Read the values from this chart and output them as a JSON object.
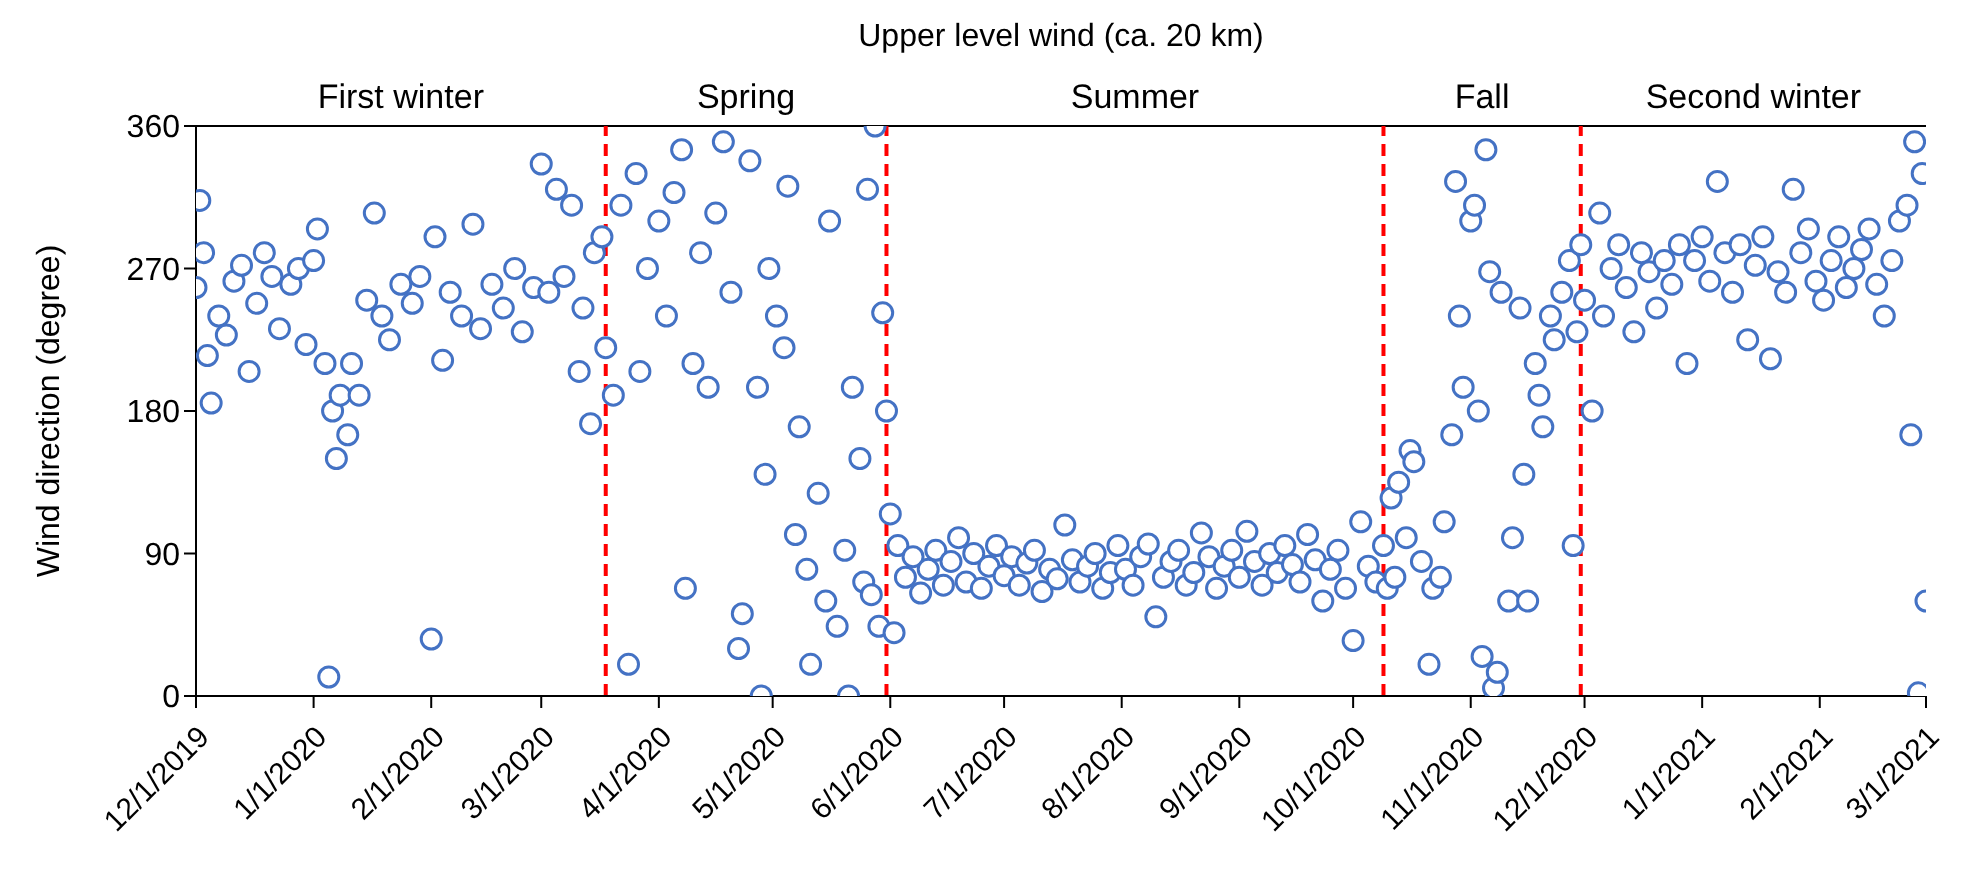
{
  "chart_data": {
    "type": "scatter",
    "title": "Upper level wind (ca. 20 km)",
    "ylabel": "Wind direction (degree)",
    "annotations": [
      "First winter",
      "Spring",
      "Summer",
      "Fall",
      "Second winter"
    ],
    "xlim": [
      "2019-12-01",
      "2021-03-01"
    ],
    "xticks": [
      {
        "value": "2019-12-01",
        "label": "12/1/2019"
      },
      {
        "value": "2020-01-01",
        "label": "1/1/2020"
      },
      {
        "value": "2020-02-01",
        "label": "2/1/2020"
      },
      {
        "value": "2020-03-01",
        "label": "3/1/2020"
      },
      {
        "value": "2020-04-01",
        "label": "4/1/2020"
      },
      {
        "value": "2020-05-01",
        "label": "5/1/2020"
      },
      {
        "value": "2020-06-01",
        "label": "6/1/2020"
      },
      {
        "value": "2020-07-01",
        "label": "7/1/2020"
      },
      {
        "value": "2020-08-01",
        "label": "8/1/2020"
      },
      {
        "value": "2020-09-01",
        "label": "9/1/2020"
      },
      {
        "value": "2020-10-01",
        "label": "10/1/2020"
      },
      {
        "value": "2020-11-01",
        "label": "11/1/2020"
      },
      {
        "value": "2020-12-01",
        "label": "12/1/2020"
      },
      {
        "value": "2021-01-01",
        "label": "1/1/2021"
      },
      {
        "value": "2021-02-01",
        "label": "2/1/2021"
      },
      {
        "value": "2021-03-01",
        "label": "3/1/2021"
      }
    ],
    "ylim": [
      0,
      360
    ],
    "yticks": [
      0,
      90,
      180,
      270,
      360
    ],
    "marker": "circle",
    "ref_lines": [
      {
        "axis": "x",
        "value": "2020-03-18",
        "color": "#ff0000",
        "line_style": "dashed"
      },
      {
        "axis": "x",
        "value": "2020-05-31",
        "color": "#ff0000",
        "line_style": "dashed"
      },
      {
        "axis": "x",
        "value": "2020-10-09",
        "color": "#ff0000",
        "line_style": "dashed"
      },
      {
        "axis": "x",
        "value": "2020-11-30",
        "color": "#ff0000",
        "line_style": "dashed"
      }
    ],
    "series": [
      {
        "color": "#4472c4",
        "x": [
          "2019-12-01",
          "2019-12-02",
          "2019-12-03",
          "2019-12-04",
          "2019-12-05",
          "2019-12-07",
          "2019-12-09",
          "2019-12-11",
          "2019-12-13",
          "2019-12-15",
          "2019-12-17",
          "2019-12-19",
          "2019-12-21",
          "2019-12-23",
          "2019-12-26",
          "2019-12-28",
          "2019-12-30",
          "2020-01-01",
          "2020-01-02",
          "2020-01-04",
          "2020-01-05",
          "2020-01-06",
          "2020-01-07",
          "2020-01-08",
          "2020-01-10",
          "2020-01-11",
          "2020-01-13",
          "2020-01-15",
          "2020-01-17",
          "2020-01-19",
          "2020-01-21",
          "2020-01-24",
          "2020-01-27",
          "2020-01-29",
          "2020-02-01",
          "2020-02-02",
          "2020-02-04",
          "2020-02-06",
          "2020-02-09",
          "2020-02-12",
          "2020-02-14",
          "2020-02-17",
          "2020-02-20",
          "2020-02-23",
          "2020-02-25",
          "2020-02-28",
          "2020-03-01",
          "2020-03-03",
          "2020-03-05",
          "2020-03-07",
          "2020-03-09",
          "2020-03-11",
          "2020-03-12",
          "2020-03-14",
          "2020-03-15",
          "2020-03-17",
          "2020-03-18",
          "2020-03-20",
          "2020-03-22",
          "2020-03-24",
          "2020-03-26",
          "2020-03-27",
          "2020-03-29",
          "2020-04-01",
          "2020-04-03",
          "2020-04-05",
          "2020-04-07",
          "2020-04-08",
          "2020-04-10",
          "2020-04-12",
          "2020-04-14",
          "2020-04-16",
          "2020-04-18",
          "2020-04-20",
          "2020-04-22",
          "2020-04-23",
          "2020-04-25",
          "2020-04-27",
          "2020-04-28",
          "2020-04-29",
          "2020-04-30",
          "2020-05-02",
          "2020-05-04",
          "2020-05-05",
          "2020-05-07",
          "2020-05-08",
          "2020-05-10",
          "2020-05-11",
          "2020-05-13",
          "2020-05-15",
          "2020-05-16",
          "2020-05-18",
          "2020-05-20",
          "2020-05-21",
          "2020-05-22",
          "2020-05-24",
          "2020-05-25",
          "2020-05-26",
          "2020-05-27",
          "2020-05-28",
          "2020-05-29",
          "2020-05-30",
          "2020-05-31",
          "2020-06-01",
          "2020-06-02",
          "2020-06-03",
          "2020-06-05",
          "2020-06-07",
          "2020-06-09",
          "2020-06-11",
          "2020-06-13",
          "2020-06-15",
          "2020-06-17",
          "2020-06-19",
          "2020-06-21",
          "2020-06-23",
          "2020-06-25",
          "2020-06-27",
          "2020-06-29",
          "2020-07-01",
          "2020-07-03",
          "2020-07-05",
          "2020-07-07",
          "2020-07-09",
          "2020-07-11",
          "2020-07-13",
          "2020-07-15",
          "2020-07-17",
          "2020-07-19",
          "2020-07-21",
          "2020-07-23",
          "2020-07-25",
          "2020-07-27",
          "2020-07-29",
          "2020-07-31",
          "2020-08-02",
          "2020-08-04",
          "2020-08-06",
          "2020-08-08",
          "2020-08-10",
          "2020-08-12",
          "2020-08-14",
          "2020-08-16",
          "2020-08-18",
          "2020-08-20",
          "2020-08-22",
          "2020-08-24",
          "2020-08-26",
          "2020-08-28",
          "2020-08-30",
          "2020-09-01",
          "2020-09-03",
          "2020-09-05",
          "2020-09-07",
          "2020-09-09",
          "2020-09-11",
          "2020-09-13",
          "2020-09-15",
          "2020-09-17",
          "2020-09-19",
          "2020-09-21",
          "2020-09-23",
          "2020-09-25",
          "2020-09-27",
          "2020-09-29",
          "2020-10-01",
          "2020-10-03",
          "2020-10-05",
          "2020-10-07",
          "2020-10-09",
          "2020-10-10",
          "2020-10-11",
          "2020-10-12",
          "2020-10-13",
          "2020-10-15",
          "2020-10-16",
          "2020-10-17",
          "2020-10-19",
          "2020-10-21",
          "2020-10-22",
          "2020-10-24",
          "2020-10-25",
          "2020-10-27",
          "2020-10-28",
          "2020-10-29",
          "2020-10-30",
          "2020-11-01",
          "2020-11-02",
          "2020-11-03",
          "2020-11-04",
          "2020-11-05",
          "2020-11-06",
          "2020-11-07",
          "2020-11-08",
          "2020-11-09",
          "2020-11-11",
          "2020-11-12",
          "2020-11-14",
          "2020-11-15",
          "2020-11-16",
          "2020-11-18",
          "2020-11-19",
          "2020-11-20",
          "2020-11-22",
          "2020-11-23",
          "2020-11-25",
          "2020-11-27",
          "2020-11-28",
          "2020-11-29",
          "2020-11-30",
          "2020-12-01",
          "2020-12-03",
          "2020-12-05",
          "2020-12-06",
          "2020-12-08",
          "2020-12-10",
          "2020-12-12",
          "2020-12-14",
          "2020-12-16",
          "2020-12-18",
          "2020-12-20",
          "2020-12-22",
          "2020-12-24",
          "2020-12-26",
          "2020-12-28",
          "2020-12-30",
          "2021-01-01",
          "2021-01-03",
          "2021-01-05",
          "2021-01-07",
          "2021-01-09",
          "2021-01-11",
          "2021-01-13",
          "2021-01-15",
          "2021-01-17",
          "2021-01-19",
          "2021-01-21",
          "2021-01-23",
          "2021-01-25",
          "2021-01-27",
          "2021-01-29",
          "2021-01-31",
          "2021-02-02",
          "2021-02-04",
          "2021-02-06",
          "2021-02-08",
          "2021-02-10",
          "2021-02-12",
          "2021-02-14",
          "2021-02-16",
          "2021-02-18",
          "2021-02-20",
          "2021-02-22",
          "2021-02-24",
          "2021-02-25",
          "2021-02-26",
          "2021-02-27",
          "2021-02-28",
          "2021-03-01"
        ],
        "values": [
          258,
          313,
          280,
          215,
          185,
          240,
          228,
          262,
          272,
          205,
          248,
          280,
          265,
          232,
          260,
          270,
          222,
          275,
          295,
          210,
          12,
          180,
          150,
          190,
          165,
          210,
          190,
          250,
          305,
          240,
          225,
          260,
          248,
          265,
          36,
          290,
          212,
          255,
          240,
          298,
          232,
          260,
          245,
          270,
          230,
          258,
          336,
          255,
          320,
          265,
          310,
          205,
          245,
          172,
          280,
          290,
          220,
          190,
          310,
          20,
          330,
          205,
          270,
          300,
          240,
          318,
          345,
          68,
          210,
          280,
          195,
          305,
          350,
          255,
          30,
          52,
          338,
          195,
          0,
          140,
          270,
          240,
          220,
          322,
          102,
          170,
          80,
          20,
          128,
          60,
          300,
          44,
          92,
          0,
          195,
          150,
          72,
          320,
          64,
          360,
          44,
          242,
          180,
          115,
          40,
          95,
          75,
          88,
          65,
          80,
          92,
          70,
          85,
          100,
          72,
          90,
          68,
          82,
          95,
          76,
          88,
          70,
          84,
          92,
          66,
          80,
          74,
          108,
          86,
          72,
          82,
          90,
          68,
          78,
          95,
          80,
          70,
          88,
          96,
          50,
          75,
          85,
          92,
          70,
          78,
          103,
          88,
          68,
          82,
          92,
          75,
          104,
          85,
          70,
          90,
          78,
          95,
          83,
          72,
          102,
          86,
          60,
          80,
          92,
          68,
          35,
          110,
          82,
          72,
          95,
          68,
          125,
          75,
          135,
          100,
          155,
          148,
          85,
          20,
          68,
          75,
          110,
          165,
          325,
          240,
          195,
          300,
          310,
          180,
          25,
          345,
          268,
          5,
          15,
          255,
          60,
          100,
          245,
          140,
          60,
          210,
          190,
          170,
          240,
          225,
          255,
          275,
          95,
          230,
          285,
          250,
          180,
          305,
          240,
          270,
          285,
          258,
          230,
          280,
          268,
          245,
          275,
          260,
          285,
          210,
          275,
          290,
          262,
          325,
          280,
          255,
          285,
          225,
          272,
          290,
          213,
          268,
          255,
          320,
          280,
          295,
          262,
          250,
          275,
          290,
          258,
          270,
          282,
          295,
          260,
          240,
          275,
          300,
          310,
          165,
          350,
          2,
          330,
          60
        ]
      }
    ]
  }
}
